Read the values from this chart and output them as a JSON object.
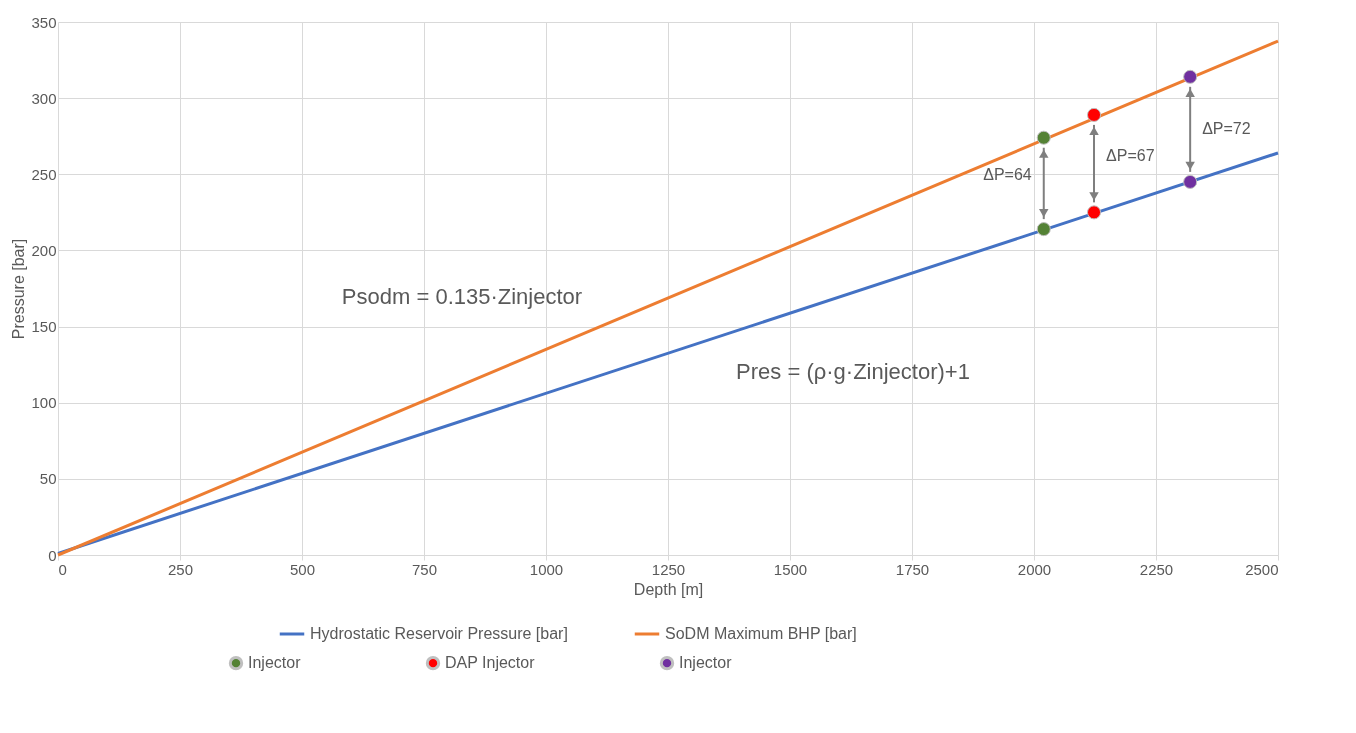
{
  "chart_data": {
    "type": "line",
    "xlabel": "Depth [m]",
    "ylabel": "Pressure [bar]",
    "xlim": [
      0,
      2500
    ],
    "ylim": [
      0,
      350
    ],
    "xticks": [
      0,
      250,
      500,
      750,
      1000,
      1250,
      1500,
      1750,
      2000,
      2250,
      2500
    ],
    "yticks": [
      0,
      50,
      100,
      150,
      200,
      250,
      300,
      350
    ],
    "grid": true,
    "legend": "bottom",
    "series": [
      {
        "name": "Hydrostatic Reservoir Pressure [bar]",
        "color": "#4472c4",
        "line_style": "solid",
        "x": [
          0,
          2500
        ],
        "values": [
          1,
          264
        ]
      },
      {
        "name": "SoDM Maximum BHP [bar]",
        "color": "#ed7d31",
        "line_style": "solid",
        "x": [
          0,
          2500
        ],
        "values": [
          0,
          337.5
        ]
      },
      {
        "name": "Injector",
        "type": "scatter",
        "marker": "circle",
        "color": "#548235",
        "x": [
          2020,
          2020
        ],
        "values": [
          274,
          214
        ]
      },
      {
        "name": "DAP Injector",
        "type": "scatter",
        "marker": "circle",
        "color": "#ff0000",
        "x": [
          2123,
          2123
        ],
        "values": [
          289,
          225
        ]
      },
      {
        "name": "Injector",
        "type": "scatter",
        "marker": "circle",
        "color": "#7030a0",
        "x": [
          2320,
          2320
        ],
        "values": [
          314,
          245
        ]
      }
    ],
    "annotations": [
      "ΔP=64",
      "ΔP=67",
      "ΔP=72",
      "Psodm = 0.135·Zinjector",
      "Pres = (ρ·g·Zinjector)+1"
    ]
  }
}
